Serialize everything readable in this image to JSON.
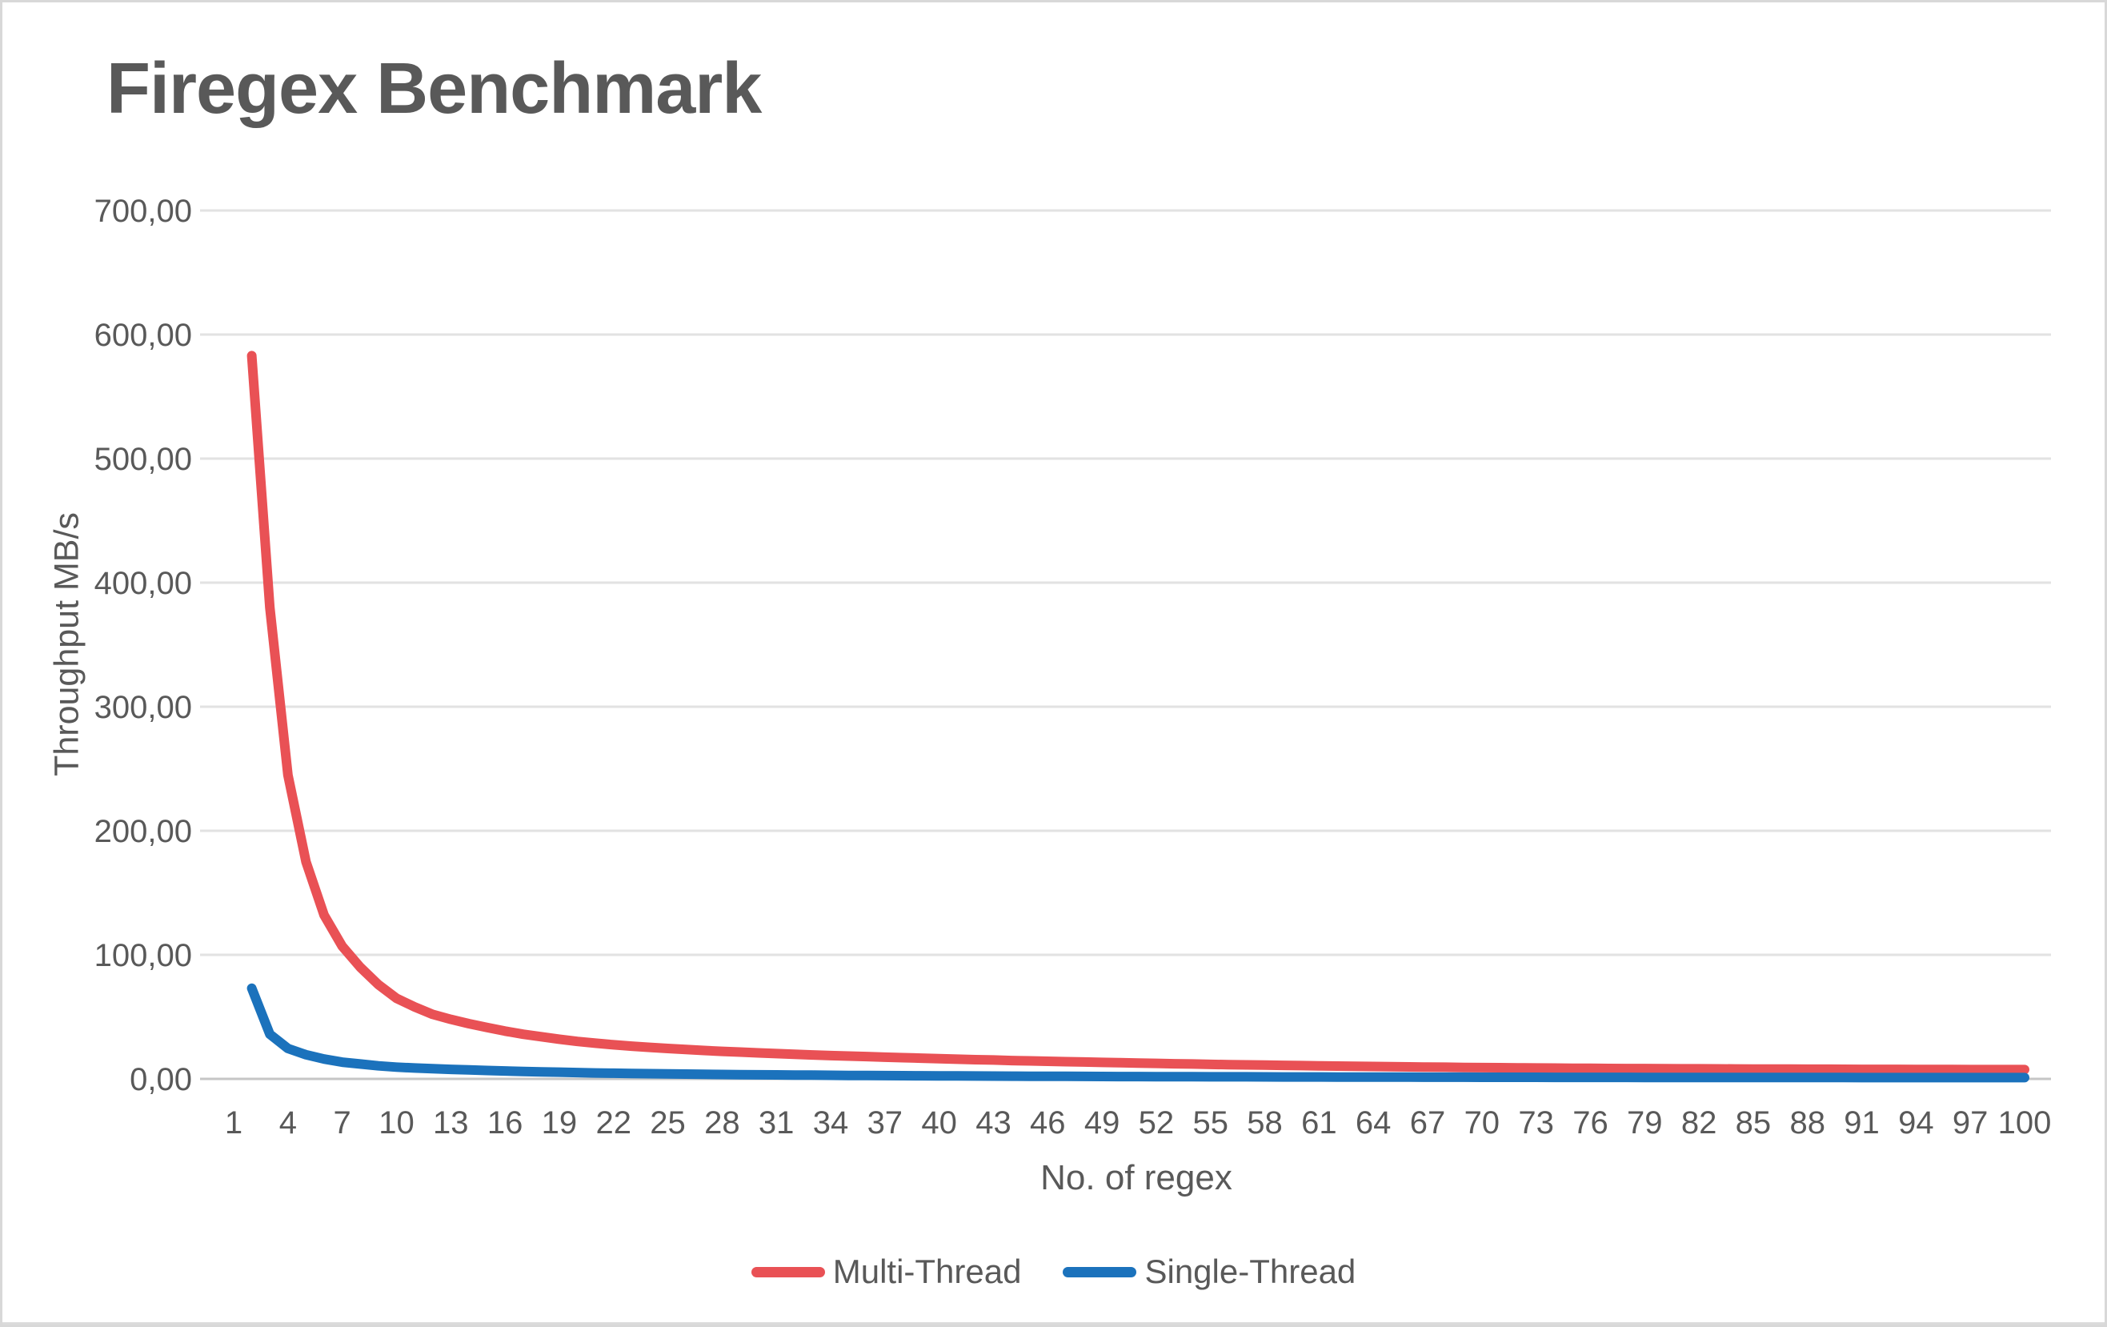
{
  "window": {
    "background": "#FFFFFF",
    "border_color": "#D8D8D8",
    "text_color": "#595959",
    "gridline_color": "#E2E2E2",
    "axis_line_color": "#C6C6C6"
  },
  "chart_data": {
    "type": "line",
    "title": "Firegex Benchmark",
    "xlabel": "No. of regex",
    "ylabel": "Throughput MB/s",
    "ylim": [
      0,
      700
    ],
    "y_tick_step": 100,
    "y_tick_labels": [
      "700,00",
      "600,00",
      "500,00",
      "400,00",
      "300,00",
      "200,00",
      "100,00",
      "0,00"
    ],
    "x_tick_values": [
      1,
      4,
      7,
      10,
      13,
      16,
      19,
      22,
      25,
      28,
      31,
      34,
      37,
      40,
      43,
      46,
      49,
      52,
      55,
      58,
      61,
      64,
      67,
      70,
      73,
      76,
      79,
      82,
      85,
      88,
      91,
      94,
      97,
      100
    ],
    "x_range": [
      1,
      100
    ],
    "grid": "horizontal",
    "legend_position": "bottom",
    "decimal_separator": ",",
    "x": [
      2,
      3,
      4,
      5,
      6,
      7,
      8,
      9,
      10,
      11,
      12,
      13,
      14,
      15,
      16,
      17,
      18,
      19,
      20,
      21,
      22,
      23,
      24,
      25,
      26,
      27,
      28,
      29,
      30,
      31,
      32,
      33,
      34,
      35,
      36,
      37,
      38,
      39,
      40,
      41,
      42,
      43,
      44,
      45,
      46,
      47,
      48,
      49,
      50,
      51,
      52,
      53,
      54,
      55,
      56,
      57,
      58,
      59,
      60,
      61,
      62,
      63,
      64,
      65,
      66,
      67,
      68,
      69,
      70,
      71,
      72,
      73,
      74,
      75,
      76,
      77,
      78,
      79,
      80,
      81,
      82,
      83,
      84,
      85,
      86,
      87,
      88,
      89,
      90,
      91,
      92,
      93,
      94,
      95,
      96,
      97,
      98,
      99,
      100
    ],
    "series": [
      {
        "name": "Multi-Thread",
        "color": "#E95155",
        "values": [
          583,
          380,
          245,
          175,
          132,
          107,
          90,
          76,
          65,
          58,
          52,
          48,
          44.5,
          41.5,
          38.5,
          36,
          34,
          32,
          30.2,
          28.8,
          27.5,
          26.4,
          25.4,
          24.5,
          23.7,
          22.9,
          22.2,
          21.6,
          21,
          20.4,
          19.8,
          19.3,
          18.8,
          18.4,
          18,
          17.5,
          17.1,
          16.7,
          16.3,
          15.9,
          15.5,
          15.2,
          14.8,
          14.5,
          14.2,
          13.9,
          13.6,
          13.3,
          13,
          12.7,
          12.5,
          12.2,
          12,
          11.7,
          11.5,
          11.3,
          11.1,
          10.9,
          10.7,
          10.5,
          10.3,
          10.2,
          10,
          9.8,
          9.7,
          9.5,
          9.4,
          9.2,
          9.1,
          9,
          8.9,
          8.8,
          8.7,
          8.6,
          8.5,
          8.4,
          8.35,
          8.3,
          8.2,
          8.15,
          8.1,
          8.05,
          8,
          7.95,
          7.9,
          7.85,
          7.8,
          7.8,
          7.75,
          7.7,
          7.7,
          7.65,
          7.6,
          7.6,
          7.55,
          7.5,
          7.5,
          7.5,
          7.5
        ]
      },
      {
        "name": "Single-Thread",
        "color": "#1B72BC",
        "values": [
          73,
          36,
          24.5,
          19.5,
          16,
          13.5,
          12,
          10.5,
          9.5,
          8.8,
          8.2,
          7.7,
          7.2,
          6.8,
          6.4,
          6,
          5.7,
          5.4,
          5.1,
          4.8,
          4.6,
          4.4,
          4.2,
          4,
          3.85,
          3.7,
          3.55,
          3.4,
          3.3,
          3.2,
          3.1,
          3,
          2.9,
          2.8,
          2.75,
          2.65,
          2.6,
          2.5,
          2.45,
          2.4,
          2.3,
          2.25,
          2.2,
          2.15,
          2.1,
          2.05,
          2,
          1.95,
          1.9,
          1.85,
          1.8,
          1.78,
          1.75,
          1.7,
          1.68,
          1.65,
          1.6,
          1.58,
          1.55,
          1.52,
          1.5,
          1.48,
          1.45,
          1.43,
          1.4,
          1.38,
          1.36,
          1.34,
          1.32,
          1.3,
          1.28,
          1.27,
          1.25,
          1.24,
          1.22,
          1.21,
          1.2,
          1.18,
          1.17,
          1.16,
          1.15,
          1.14,
          1.13,
          1.12,
          1.11,
          1.1,
          1.09,
          1.08,
          1.07,
          1.06,
          1.06,
          1.05,
          1.05,
          1.04,
          1.04,
          1.03,
          1.03,
          1.02,
          1.02
        ]
      }
    ]
  }
}
